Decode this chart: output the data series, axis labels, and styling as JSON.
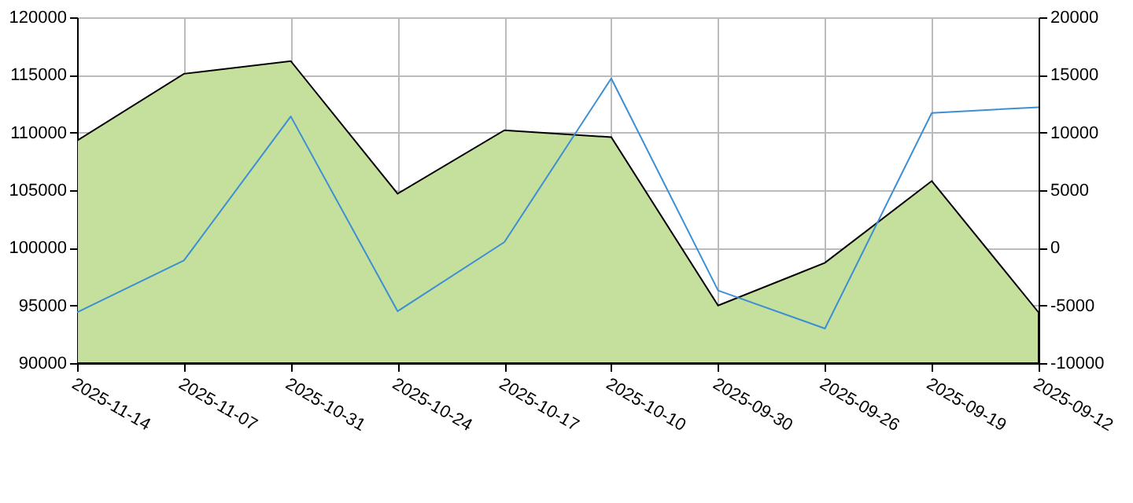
{
  "chart_data": {
    "type": "area",
    "categories": [
      "2025-11-14",
      "2025-11-07",
      "2025-10-31",
      "2025-10-24",
      "2025-10-17",
      "2025-10-10",
      "2025-09-30",
      "2025-09-26",
      "2025-09-19",
      "2025-09-12"
    ],
    "series": [
      {
        "color": "#c5df9d",
        "values": [
          109300,
          115100,
          116200,
          104700,
          110200,
          109600,
          95000,
          98700,
          105800,
          94400
        ]
      },
      {
        "type": "line",
        "axis": "y2",
        "color": "#3d8fd4",
        "values": [
          -5600,
          -1100,
          11400,
          -5500,
          500,
          14700,
          -3700,
          -7000,
          11700,
          12200
        ]
      }
    ],
    "ylim": [
      90000,
      120000
    ],
    "yticks": [
      90000,
      95000,
      100000,
      105000,
      110000,
      115000,
      120000
    ],
    "y2lim": [
      -10000,
      20000
    ],
    "y2ticks": [
      -10000,
      -5000,
      0,
      5000,
      10000,
      15000,
      20000
    ],
    "grid": true,
    "legend": false
  }
}
